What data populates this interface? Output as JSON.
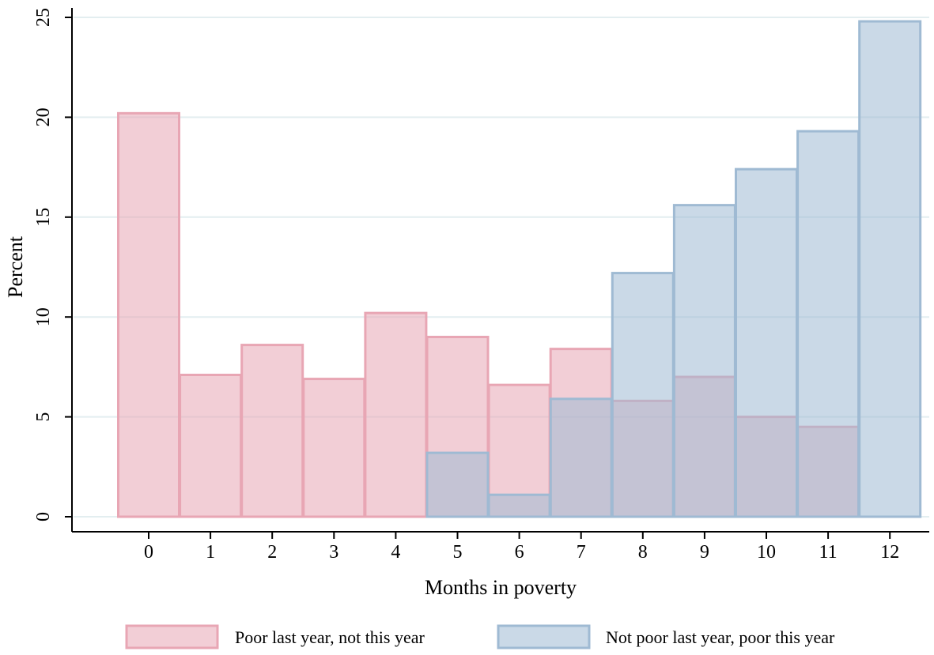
{
  "chart_data": {
    "type": "bar",
    "title": "",
    "xlabel": "Months in poverty",
    "ylabel": "Percent",
    "categories": [
      "0",
      "1",
      "2",
      "3",
      "4",
      "5",
      "6",
      "7",
      "8",
      "9",
      "10",
      "11",
      "12"
    ],
    "yticks": [
      "0",
      "5",
      "10",
      "15",
      "20",
      "25"
    ],
    "ylim": [
      0,
      25.5
    ],
    "grid": true,
    "legend_position": "bottom",
    "series": [
      {
        "name": "Poor last year, not this year",
        "color": "#e8a6b4",
        "values": [
          20.2,
          7.1,
          8.6,
          6.9,
          10.2,
          9.0,
          6.6,
          8.4,
          5.8,
          7.0,
          5.0,
          4.5,
          null
        ]
      },
      {
        "name": "Not poor last year, poor this year",
        "color": "#9fbad3",
        "values": [
          null,
          null,
          null,
          null,
          null,
          3.2,
          1.1,
          5.9,
          12.2,
          15.6,
          17.4,
          19.3,
          24.8
        ]
      }
    ]
  }
}
